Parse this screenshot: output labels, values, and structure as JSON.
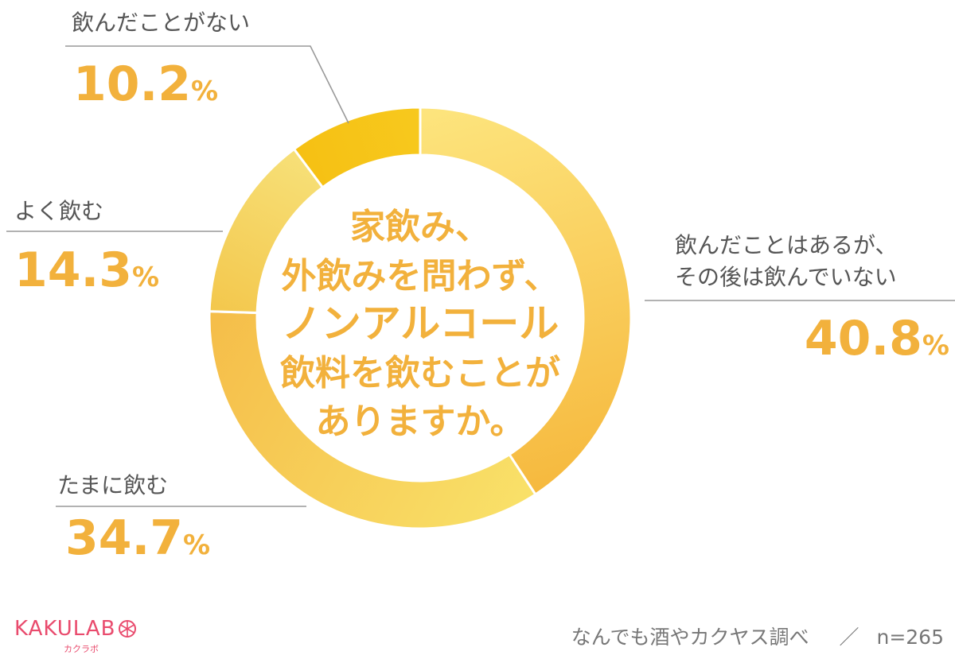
{
  "chart_data": {
    "type": "pie",
    "donut": true,
    "title_lines": [
      "家飲み、",
      "外飲みを問わず、",
      "ノンアルコール",
      "飲料を飲むことが",
      "ありますか。"
    ],
    "slices": [
      {
        "label_lines": [
          "飲んだことはあるが、",
          "その後は飲んでいない"
        ],
        "value": 40.8,
        "display": "40.8",
        "color_from": "#fde57e",
        "color_to": "#f6b93e"
      },
      {
        "label_lines": [
          "たまに飲む"
        ],
        "value": 34.7,
        "display": "34.7",
        "color_from": "#f9e169",
        "color_to": "#f5bd49"
      },
      {
        "label_lines": [
          "よく飲む"
        ],
        "value": 14.3,
        "display": "14.3",
        "color_from": "#f3c74c",
        "color_to": "#f7e078"
      },
      {
        "label_lines": [
          "飲んだことがない"
        ],
        "value": 10.2,
        "display": "10.2",
        "color_from": "#f6c013",
        "color_to": "#f7c91e"
      }
    ],
    "unit": "%",
    "value_color": "#f2b13c",
    "title_color": "#f2b13c"
  },
  "logo": {
    "text": "KAKULAB",
    "sub": "カクラボ",
    "color": "#e94b6d"
  },
  "footer": {
    "source": "なんでも酒やカクヤス調べ",
    "separator": "／",
    "n": "n=265"
  }
}
